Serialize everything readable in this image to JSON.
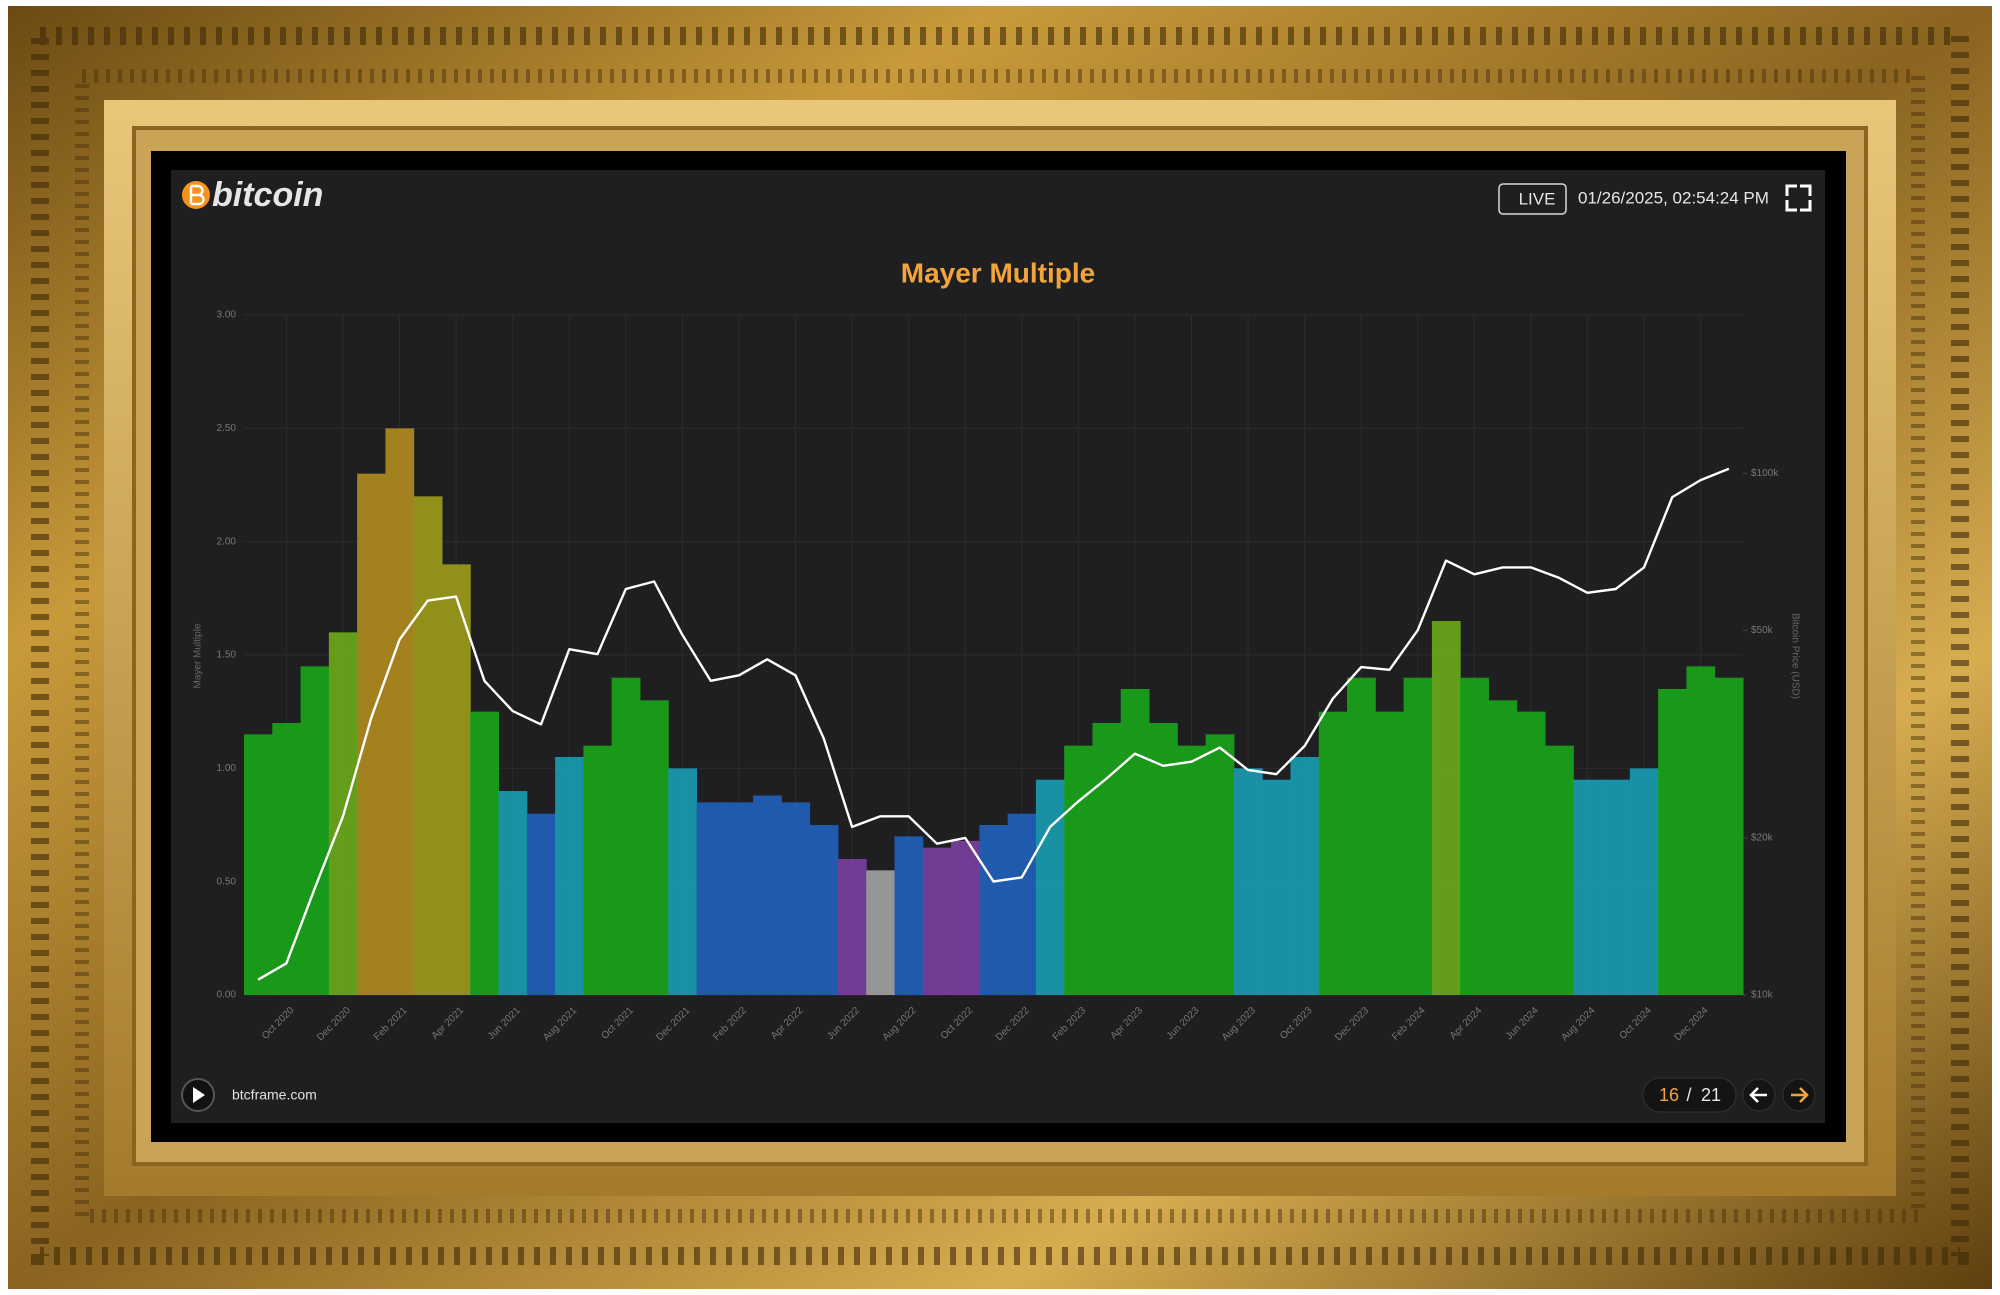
{
  "header": {
    "logo": "bitcoin",
    "live": "LIVE",
    "timestamp": "01/26/2025, 02:54:24 PM"
  },
  "footer": {
    "site": "btcframe.com",
    "page": "16",
    "separator": "/",
    "page_total": "21"
  },
  "chart_data": {
    "type": "bar",
    "title": "Mayer Multiple",
    "ylabel": "Mayer Multiple",
    "y2label": "Bitcoin Price (USD)",
    "categories": [
      null,
      "Oct 2020",
      null,
      "Dec 2020",
      null,
      "Feb 2021",
      null,
      "Apr 2021",
      null,
      "Jun 2021",
      null,
      "Aug 2021",
      null,
      "Oct 2021",
      null,
      "Dec 2021",
      null,
      "Feb 2022",
      null,
      "Apr 2022",
      null,
      "Jun 2022",
      null,
      "Aug 2022",
      null,
      "Oct 2022",
      null,
      "Dec 2022",
      null,
      "Feb 2023",
      null,
      "Apr 2023",
      null,
      "Jun 2023",
      null,
      "Aug 2023",
      null,
      "Oct 2023",
      null,
      "Dec 2023",
      null,
      "Feb 2024",
      null,
      "Apr 2024",
      null,
      "Jun 2024",
      null,
      "Aug 2024",
      null,
      "Oct 2024",
      null,
      "Dec 2024",
      null
    ],
    "series": [
      {
        "type": "bar",
        "values": [
          1.15,
          1.2,
          1.45,
          1.6,
          2.3,
          2.5,
          2.2,
          1.9,
          1.25,
          0.9,
          0.8,
          1.05,
          1.1,
          1.4,
          1.3,
          1.0,
          0.85,
          0.85,
          0.88,
          0.85,
          0.75,
          0.6,
          0.55,
          0.7,
          0.65,
          0.68,
          0.75,
          0.8,
          0.95,
          1.1,
          1.2,
          1.35,
          1.2,
          1.1,
          1.15,
          1.0,
          0.95,
          1.05,
          1.25,
          1.4,
          1.25,
          1.4,
          1.65,
          1.4,
          1.3,
          1.25,
          1.1,
          0.95,
          0.95,
          1.0,
          1.35,
          1.45,
          1.4
        ],
        "colors": [
          "#19a31a",
          "#19a31a",
          "#19a31a",
          "#6aa81a",
          "#b08a20",
          "#b08a20",
          "#9a9a1a",
          "#9a9a1a",
          "#19a31a",
          "#1a9ab0",
          "#1f5fb8",
          "#1a9ab0",
          "#19a31a",
          "#19a31a",
          "#19a31a",
          "#1a9ab0",
          "#1f5fb8",
          "#1f5fb8",
          "#1f5fb8",
          "#1f5fb8",
          "#1f5fb8",
          "#7a3fa0",
          "#a0a0a0",
          "#1f5fb8",
          "#7a3fa0",
          "#7a3fa0",
          "#1f5fb8",
          "#1f5fb8",
          "#1a9ab0",
          "#19a31a",
          "#19a31a",
          "#19a31a",
          "#19a31a",
          "#19a31a",
          "#19a31a",
          "#1a9ab0",
          "#1a9ab0",
          "#1a9ab0",
          "#19a31a",
          "#19a31a",
          "#19a31a",
          "#19a31a",
          "#6aa81a",
          "#19a31a",
          "#19a31a",
          "#19a31a",
          "#19a31a",
          "#1a9ab0",
          "#1a9ab0",
          "#1a9ab0",
          "#19a31a",
          "#19a31a",
          "#19a31a"
        ]
      },
      {
        "type": "line",
        "axis": "y2",
        "color": "#ffffff",
        "values": [
          10700,
          11500,
          16000,
          22000,
          34000,
          48000,
          57000,
          58000,
          40000,
          35000,
          33000,
          46000,
          45000,
          60000,
          62000,
          49000,
          40000,
          41000,
          44000,
          41000,
          31000,
          21000,
          22000,
          22000,
          19500,
          20000,
          16500,
          16800,
          21000,
          23500,
          26000,
          29000,
          27500,
          28000,
          29800,
          27000,
          26500,
          30000,
          37000,
          42500,
          42000,
          50000,
          68000,
          64000,
          66000,
          66000,
          63000,
          59000,
          60000,
          66000,
          90000,
          97000,
          102000
        ]
      }
    ],
    "ylim": [
      0,
      3
    ],
    "yticks": [
      {
        "value": 0,
        "label": "0.00"
      },
      {
        "value": 0.5,
        "label": "0.50"
      },
      {
        "value": 1,
        "label": "1.00"
      },
      {
        "value": 1.5,
        "label": "1.50"
      },
      {
        "value": 2,
        "label": "2.00"
      },
      {
        "value": 2.5,
        "label": "2.50"
      },
      {
        "value": 3,
        "label": "3.00"
      }
    ],
    "y2lim": [
      10000,
      201000
    ],
    "y2log": true,
    "y2ticks": [
      {
        "value": 10000,
        "label": "$10k"
      },
      {
        "value": 20000,
        "label": "$20k"
      },
      {
        "value": 50000,
        "label": "$50k"
      },
      {
        "value": 100000,
        "label": "$100k"
      }
    ],
    "grid": true
  }
}
